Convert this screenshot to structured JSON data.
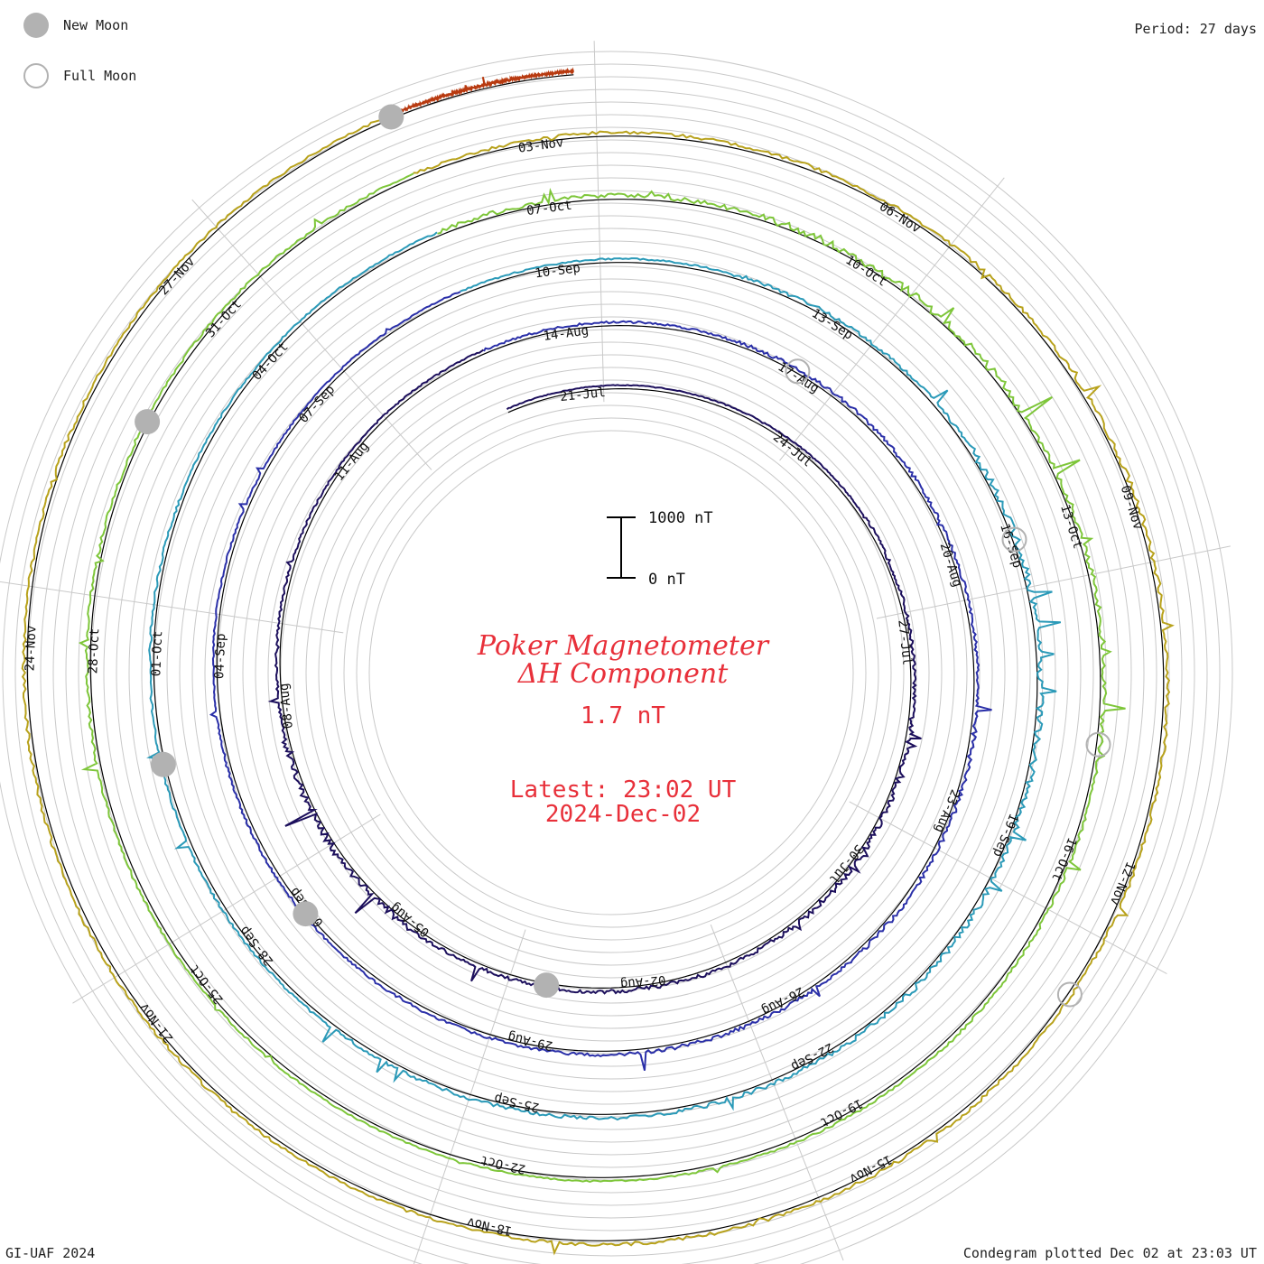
{
  "title": {
    "line1": "Poker Magnetometer",
    "line2": "ΔH Component",
    "value": "1.7 nT"
  },
  "latest": {
    "time": "Latest: 23:02 UT",
    "date": "2024-Dec-02"
  },
  "period_label": "Period: 27 days",
  "footer": {
    "left": "GI-UAF 2024",
    "right": "Condegram plotted Dec 02 at 23:03 UT"
  },
  "legend": {
    "new_moon": "New Moon",
    "full_moon": "Full Moon",
    "new_moon_color": "#b2b2b2",
    "full_moon_color": "#b2b2b2"
  },
  "scale_bar": {
    "top_label": "1000 nT",
    "bottom_label": "0 nT"
  },
  "chart_data": {
    "type": "line",
    "period_days": 27,
    "start_date": "19-Jul",
    "end_date": "02-Dec",
    "series": [
      {
        "color": "#1c0f5c",
        "date_labels": [
          "21-Jul",
          "24-Jul",
          "27-Jul",
          "30-Jul",
          "02-Aug",
          "05-Aug",
          "08-Aug",
          "11-Aug"
        ],
        "activity": [
          0.1,
          0.15,
          0.4,
          0.8,
          0.6,
          0.5,
          1.0,
          0.3,
          0.2
        ]
      },
      {
        "color": "#2a2fa8",
        "date_labels": [
          "14-Aug",
          "17-Aug",
          "20-Aug",
          "23-Aug",
          "26-Aug",
          "29-Aug",
          "01-Sep",
          "04-Sep",
          "07-Sep"
        ],
        "activity": [
          0.3,
          0.5,
          0.4,
          0.6,
          0.5,
          0.4,
          0.3,
          0.2,
          0.2
        ]
      },
      {
        "color": "#2b9ab8",
        "date_labels": [
          "10-Sep",
          "13-Sep",
          "16-Sep",
          "19-Sep",
          "22-Sep",
          "25-Sep",
          "28-Sep",
          "01-Oct",
          "04-Oct"
        ],
        "activity": [
          0.2,
          0.5,
          0.9,
          0.8,
          0.6,
          0.5,
          0.3,
          0.3,
          0.2
        ]
      },
      {
        "color": "#7ec63a",
        "date_labels": [
          "07-Oct",
          "10-Oct",
          "13-Oct",
          "16-Oct",
          "19-Oct",
          "22-Oct",
          "25-Oct",
          "28-Oct",
          "31-Oct"
        ],
        "activity": [
          0.6,
          1.0,
          0.7,
          0.4,
          0.3,
          0.2,
          0.3,
          0.4,
          0.3
        ]
      },
      {
        "color": "#b8a21c",
        "date_labels": [
          "03-Nov",
          "06-Nov",
          "09-Nov",
          "12-Nov",
          "15-Nov",
          "18-Nov",
          "21-Nov",
          "24-Nov",
          "27-Nov"
        ],
        "activity": [
          0.4,
          0.5,
          0.6,
          0.4,
          0.5,
          0.4,
          0.4,
          0.4,
          0.3
        ]
      },
      {
        "color": "#b83a10",
        "date_labels": [],
        "activity": [
          0.2,
          0.3,
          0.2
        ]
      }
    ],
    "ring_colors": [
      "#1c0f5c",
      "#2a2fa8",
      "#2b9ab8",
      "#36c08a",
      "#7ec63a",
      "#b8a21c",
      "#c8861c",
      "#b83a10"
    ],
    "new_moon_dates": [
      "04-Aug",
      "03-Sep",
      "02-Oct",
      "01-Nov",
      "01-Dec"
    ],
    "full_moon_dates": [
      "19-Aug",
      "18-Sep",
      "17-Oct",
      "15-Nov"
    ]
  }
}
